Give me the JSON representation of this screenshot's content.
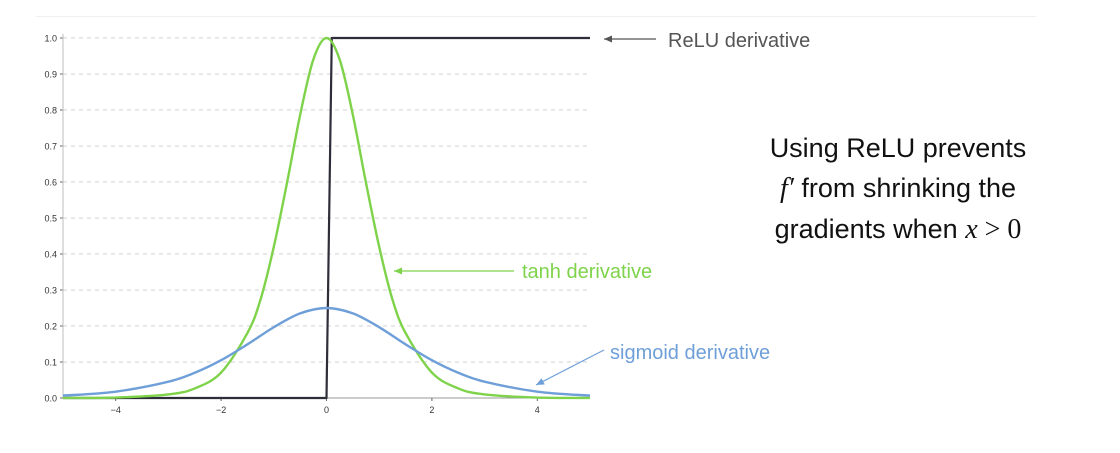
{
  "chart_data": {
    "type": "line",
    "xlim": [
      -5,
      5
    ],
    "ylim": [
      0,
      1.0
    ],
    "x_ticks": [
      -4,
      -2,
      0,
      2,
      4
    ],
    "y_ticks": [
      0.0,
      0.1,
      0.2,
      0.3,
      0.4,
      0.5,
      0.6,
      0.7,
      0.8,
      0.9,
      1.0
    ],
    "x_tick_labels": [
      "−4",
      "−2",
      "0",
      "2",
      "4"
    ],
    "y_tick_labels": [
      "0.0",
      "0.1",
      "0.2",
      "0.3",
      "0.4",
      "0.5",
      "0.6",
      "0.7",
      "0.8",
      "0.9",
      "1.0"
    ],
    "grid": "horizontal-dashed",
    "series": [
      {
        "name": "ReLU derivative",
        "color": "#2e2e3a",
        "x": [
          -5,
          0,
          0.1,
          5
        ],
        "y": [
          0,
          0,
          1,
          1
        ]
      },
      {
        "name": "tanh derivative",
        "color": "#7ed34a",
        "x": [
          -5,
          -4,
          -3,
          -2.5,
          -2,
          -1.5,
          -1.25,
          -1,
          -0.75,
          -0.5,
          -0.25,
          0,
          0.25,
          0.5,
          0.75,
          1,
          1.25,
          1.5,
          2,
          2.5,
          3,
          4,
          5
        ],
        "y": [
          0.0002,
          0.0013,
          0.0099,
          0.0266,
          0.0707,
          0.1807,
          0.2743,
          0.42,
          0.5972,
          0.7864,
          0.9401,
          1.0,
          0.9401,
          0.7864,
          0.5972,
          0.42,
          0.2743,
          0.1807,
          0.0707,
          0.0266,
          0.0099,
          0.0013,
          0.0002
        ]
      },
      {
        "name": "sigmoid derivative",
        "color": "#6f9fd8",
        "x": [
          -5,
          -4,
          -3,
          -2.5,
          -2,
          -1.5,
          -1,
          -0.5,
          0,
          0.5,
          1,
          1.5,
          2,
          2.5,
          3,
          4,
          5
        ],
        "y": [
          0.0066,
          0.0177,
          0.0452,
          0.0701,
          0.105,
          0.1491,
          0.1966,
          0.235,
          0.25,
          0.235,
          0.1966,
          0.1491,
          0.105,
          0.0701,
          0.0452,
          0.0177,
          0.0066
        ]
      }
    ],
    "annotations": [
      {
        "series": "ReLU derivative",
        "text": "ReLU derivative",
        "point": [
          5.3,
          1.0
        ],
        "color": "#555555"
      },
      {
        "series": "tanh derivative",
        "text": "tanh derivative",
        "point": [
          1.25,
          0.2743
        ],
        "color": "#7ed34a"
      },
      {
        "series": "sigmoid derivative",
        "text": "sigmoid derivative",
        "point": [
          3.9,
          0.04
        ],
        "color": "#6f9fd8"
      }
    ]
  },
  "note": {
    "line1": "Using ReLU prevents",
    "line2_math": "f′",
    "line2_text": " from  shrinking the",
    "line3_text": "gradients when ",
    "line3_var": "x",
    "line3_op": " > ",
    "line3_num": "0"
  }
}
